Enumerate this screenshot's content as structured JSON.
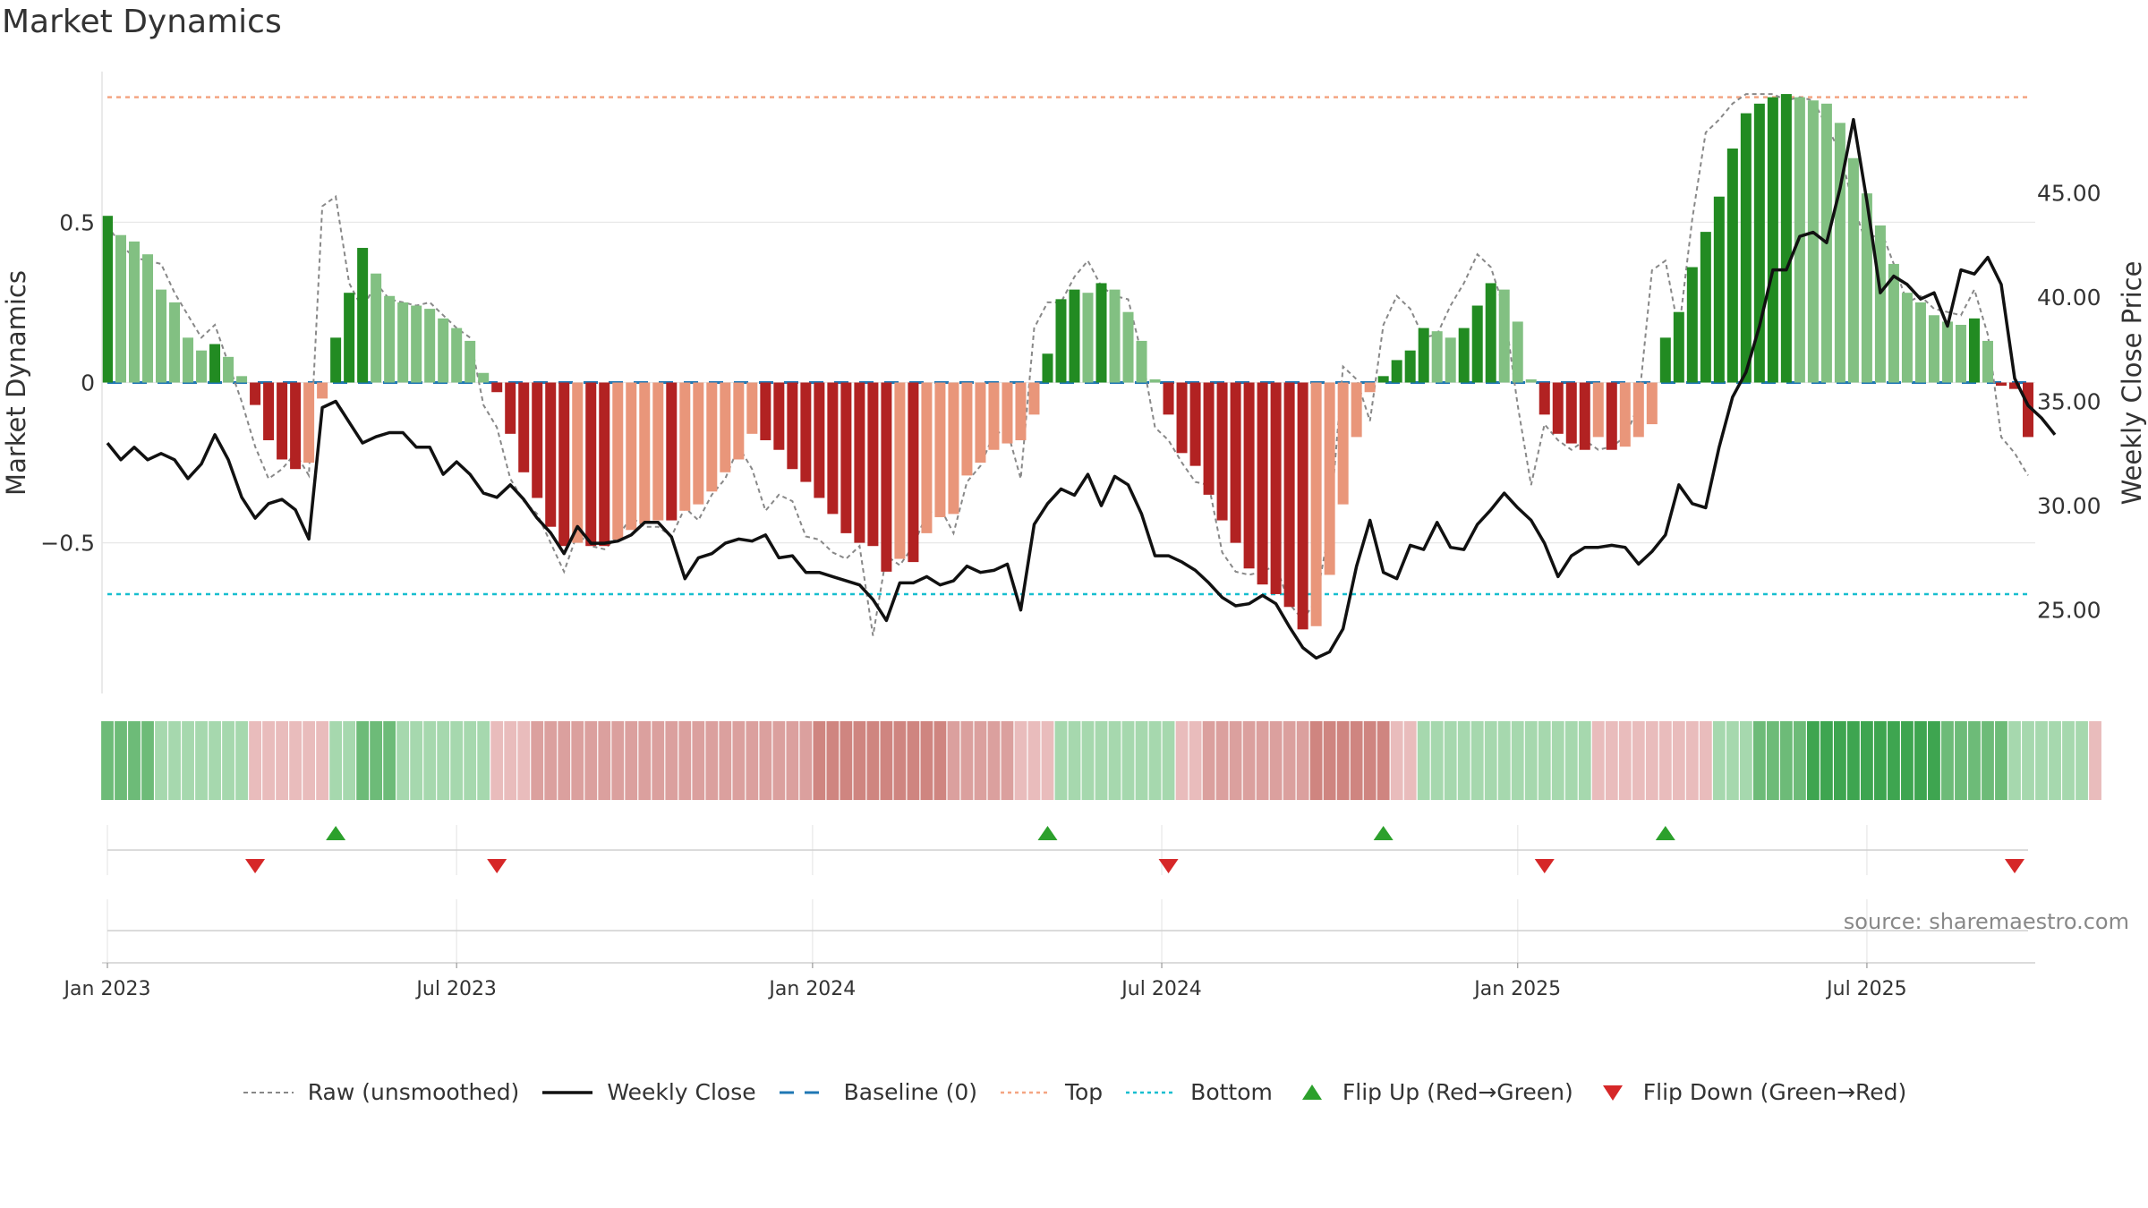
{
  "title": "Market Dynamics",
  "source": "source: sharemaestro.com",
  "colors": {
    "strong_green": "#228b22",
    "light_green": "#82c082",
    "strong_red": "#b22222",
    "light_red": "#e9967a",
    "baseline": "#1f77b4",
    "top": "#f4a582",
    "bottom": "#17becf",
    "flip_up": "#2ca02c",
    "flip_down": "#d62728"
  },
  "legend": [
    {
      "key": "raw",
      "label": "Raw (unsmoothed)"
    },
    {
      "key": "close",
      "label": "Weekly Close"
    },
    {
      "key": "baseline",
      "label": "Baseline (0)"
    },
    {
      "key": "top",
      "label": "Top"
    },
    {
      "key": "bottom",
      "label": "Bottom"
    },
    {
      "key": "flip_up",
      "label": "Flip Up (Red→Green)"
    },
    {
      "key": "flip_down",
      "label": "Flip Down (Green→Red)"
    }
  ],
  "chart_data": {
    "type": "bar",
    "ylabel": "Market Dynamics",
    "y2label": "Weekly Close Price",
    "ylim": [
      -0.97,
      0.97
    ],
    "y2lim": [
      21.0,
      50.8
    ],
    "yticks": [
      {
        "v": 0.5,
        "label": "0.5"
      },
      {
        "v": 0,
        "label": "0"
      },
      {
        "v": -0.5,
        "label": "−0.5"
      }
    ],
    "y2ticks": [
      {
        "v": 45,
        "label": "45.00"
      },
      {
        "v": 40,
        "label": "40.00"
      },
      {
        "v": 35,
        "label": "35.00"
      },
      {
        "v": 30,
        "label": "30.00"
      },
      {
        "v": 25,
        "label": "25.00"
      }
    ],
    "xticks": [
      {
        "i": 0,
        "label": "Jan 2023"
      },
      {
        "i": 26,
        "label": "Jul 2023"
      },
      {
        "i": 52.5,
        "label": "Jan 2024"
      },
      {
        "i": 78.5,
        "label": "Jul 2024"
      },
      {
        "i": 105,
        "label": "Jan 2025"
      },
      {
        "i": 131,
        "label": "Jul 2025"
      }
    ],
    "top_level": 0.89,
    "bottom_level": -0.66,
    "baseline": 0,
    "momentum": [
      0.52,
      0.46,
      0.44,
      0.4,
      0.29,
      0.25,
      0.14,
      0.1,
      0.12,
      0.08,
      0.02,
      -0.07,
      -0.18,
      -0.24,
      -0.27,
      -0.25,
      -0.05,
      0.14,
      0.28,
      0.42,
      0.34,
      0.27,
      0.25,
      0.24,
      0.23,
      0.2,
      0.17,
      0.13,
      0.03,
      -0.03,
      -0.16,
      -0.28,
      -0.36,
      -0.45,
      -0.51,
      -0.5,
      -0.51,
      -0.51,
      -0.49,
      -0.46,
      -0.44,
      -0.43,
      -0.43,
      -0.4,
      -0.38,
      -0.34,
      -0.28,
      -0.24,
      -0.16,
      -0.18,
      -0.21,
      -0.27,
      -0.31,
      -0.36,
      -0.41,
      -0.47,
      -0.5,
      -0.51,
      -0.59,
      -0.55,
      -0.56,
      -0.47,
      -0.42,
      -0.41,
      -0.29,
      -0.25,
      -0.21,
      -0.19,
      -0.18,
      -0.1,
      0.09,
      0.26,
      0.29,
      0.28,
      0.31,
      0.29,
      0.22,
      0.13,
      0.01,
      -0.1,
      -0.22,
      -0.26,
      -0.35,
      -0.43,
      -0.5,
      -0.58,
      -0.63,
      -0.66,
      -0.7,
      -0.77,
      -0.76,
      -0.6,
      -0.38,
      -0.17,
      -0.03,
      0.02,
      0.07,
      0.1,
      0.17,
      0.16,
      0.14,
      0.17,
      0.24,
      0.31,
      0.29,
      0.19,
      0.01,
      -0.1,
      -0.16,
      -0.19,
      -0.21,
      -0.17,
      -0.21,
      -0.2,
      -0.17,
      -0.13,
      0.14,
      0.22,
      0.36,
      0.47,
      0.58,
      0.73,
      0.84,
      0.87,
      0.89,
      0.9,
      0.89,
      0.88,
      0.87,
      0.81,
      0.7,
      0.59,
      0.49,
      0.37,
      0.28,
      0.25,
      0.21,
      0.19,
      0.18,
      0.2,
      0.13,
      -0.01,
      -0.02,
      -0.17
    ],
    "raw": [
      0.49,
      0.43,
      0.39,
      0.38,
      0.37,
      0.28,
      0.21,
      0.14,
      0.18,
      0.06,
      -0.06,
      -0.2,
      -0.3,
      -0.27,
      -0.22,
      -0.29,
      0.55,
      0.58,
      0.31,
      0.23,
      0.31,
      0.26,
      0.25,
      0.24,
      0.25,
      0.21,
      0.17,
      0.14,
      -0.07,
      -0.14,
      -0.3,
      -0.37,
      -0.41,
      -0.5,
      -0.59,
      -0.47,
      -0.51,
      -0.52,
      -0.48,
      -0.42,
      -0.45,
      -0.45,
      -0.48,
      -0.39,
      -0.43,
      -0.35,
      -0.3,
      -0.2,
      -0.27,
      -0.4,
      -0.35,
      -0.37,
      -0.48,
      -0.49,
      -0.53,
      -0.55,
      -0.51,
      -0.79,
      -0.54,
      -0.57,
      -0.51,
      -0.41,
      -0.39,
      -0.47,
      -0.31,
      -0.26,
      -0.16,
      -0.15,
      -0.3,
      0.17,
      0.25,
      0.25,
      0.33,
      0.38,
      0.3,
      0.27,
      0.26,
      0.09,
      -0.14,
      -0.18,
      -0.25,
      -0.31,
      -0.32,
      -0.53,
      -0.59,
      -0.6,
      -0.59,
      -0.57,
      -0.69,
      -0.74,
      -0.68,
      -0.45,
      0.05,
      0.01,
      -0.12,
      0.18,
      0.27,
      0.23,
      0.14,
      0.15,
      0.24,
      0.31,
      0.4,
      0.36,
      0.23,
      -0.07,
      -0.32,
      -0.13,
      -0.18,
      -0.21,
      -0.18,
      -0.21,
      -0.2,
      -0.17,
      -0.07,
      0.35,
      0.38,
      0.16,
      0.51,
      0.78,
      0.82,
      0.87,
      0.9,
      0.9,
      0.9,
      0.88,
      0.89,
      0.88,
      0.8,
      0.72,
      0.55,
      0.43,
      0.48,
      0.37,
      0.25,
      0.27,
      0.23,
      0.22,
      0.21,
      0.29,
      0.15,
      -0.17,
      -0.22,
      -0.29
    ],
    "close": [
      33.0,
      32.2,
      32.8,
      32.2,
      32.5,
      32.2,
      31.3,
      32.0,
      33.4,
      32.2,
      30.4,
      29.4,
      30.1,
      30.3,
      29.8,
      28.4,
      34.7,
      35.0,
      34.0,
      33.0,
      33.3,
      33.5,
      33.5,
      32.8,
      32.8,
      31.5,
      32.1,
      31.5,
      30.6,
      30.4,
      31.0,
      30.3,
      29.4,
      28.7,
      27.7,
      29.0,
      28.2,
      28.2,
      28.3,
      28.6,
      29.2,
      29.2,
      28.5,
      26.5,
      27.5,
      27.7,
      28.2,
      28.4,
      28.3,
      28.6,
      27.5,
      27.6,
      26.8,
      26.8,
      26.6,
      26.4,
      26.2,
      25.5,
      24.5,
      26.3,
      26.3,
      26.6,
      26.2,
      26.4,
      27.1,
      26.8,
      26.9,
      27.2,
      25.0,
      29.1,
      30.1,
      30.8,
      30.5,
      31.5,
      30.0,
      31.4,
      31.0,
      29.6,
      27.6,
      27.6,
      27.3,
      26.9,
      26.3,
      25.6,
      25.2,
      25.3,
      25.7,
      25.3,
      24.2,
      23.2,
      22.7,
      23.0,
      24.1,
      27.1,
      29.3,
      26.8,
      26.5,
      28.1,
      27.9,
      29.2,
      28.0,
      27.9,
      29.1,
      29.8,
      30.6,
      29.9,
      29.3,
      28.2,
      26.6,
      27.6,
      28.0,
      28.0,
      28.1,
      28.0,
      27.2,
      27.8,
      28.6,
      31.0,
      30.1,
      29.9,
      32.8,
      35.2,
      36.4,
      38.6,
      41.3,
      41.3,
      42.9,
      43.1,
      42.6,
      45.2,
      48.5,
      44.6,
      40.2,
      41.0,
      40.6,
      39.9,
      40.2,
      38.6,
      41.3,
      41.1,
      41.9,
      40.6,
      36.1,
      34.8,
      34.2,
      33.4
    ],
    "regime": [
      2,
      2,
      2,
      2,
      1,
      1,
      1,
      1,
      1,
      1,
      1,
      -1,
      -1,
      -1,
      -1,
      -1,
      -1,
      1,
      1,
      2,
      2,
      2,
      1,
      1,
      1,
      1,
      1,
      1,
      1,
      -1,
      -1,
      -1,
      -2,
      -2,
      -2,
      -2,
      -2,
      -2,
      -2,
      -2,
      -2,
      -2,
      -2,
      -2,
      -2,
      -2,
      -2,
      -2,
      -2,
      -2,
      -2,
      -2,
      -2,
      -3,
      -3,
      -3,
      -3,
      -3,
      -3,
      -3,
      -3,
      -3,
      -3,
      -2,
      -2,
      -2,
      -2,
      -2,
      -1,
      -1,
      -1,
      1,
      1,
      1,
      1,
      1,
      1,
      1,
      1,
      1,
      -1,
      -1,
      -2,
      -2,
      -2,
      -2,
      -2,
      -2,
      -2,
      -2,
      -3,
      -3,
      -3,
      -3,
      -3,
      -3,
      -1,
      -1,
      1,
      1,
      1,
      1,
      1,
      1,
      1,
      1,
      1,
      1,
      1,
      1,
      1,
      -1,
      -1,
      -1,
      -1,
      -1,
      -1,
      -1,
      -1,
      -1,
      1,
      1,
      1,
      2,
      2,
      2,
      2,
      3,
      3,
      3,
      3,
      3,
      3,
      3,
      3,
      3,
      3,
      2,
      2,
      2,
      2,
      2,
      1,
      1,
      1,
      1,
      1,
      1,
      -1
    ],
    "flips_up": [
      17,
      70,
      95,
      116
    ],
    "flips_down": [
      11,
      29,
      79,
      107,
      142
    ]
  }
}
